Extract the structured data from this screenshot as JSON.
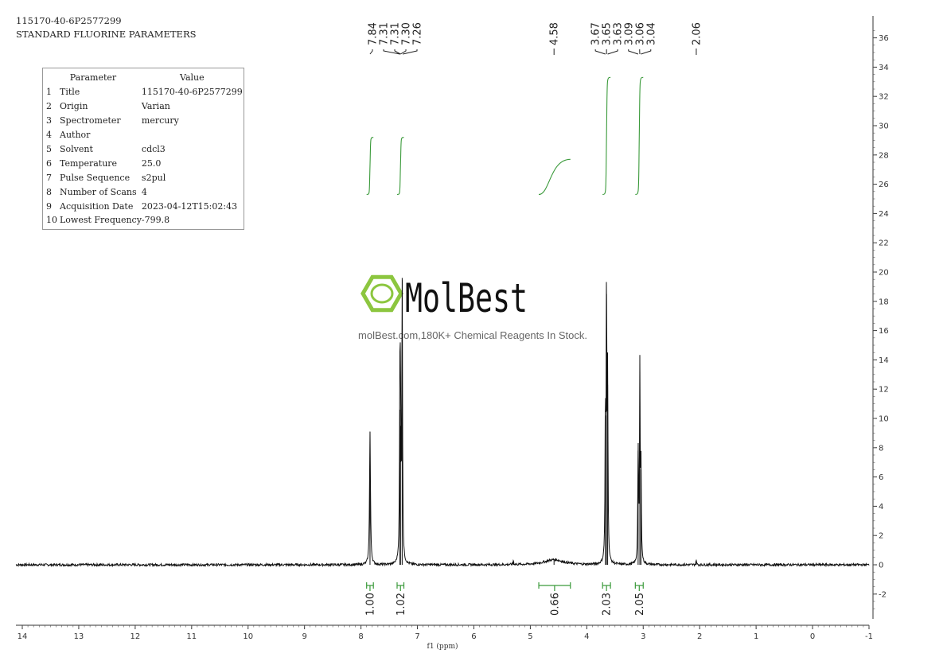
{
  "header": {
    "sample_id": "115170-40-6P2577299",
    "parameter_set": "STANDARD FLUORINE PARAMETERS"
  },
  "param_table": {
    "col_parameter": "Parameter",
    "col_value": "Value",
    "rows": [
      {
        "idx": "1",
        "name": "Title",
        "value": "115170-40-6P2577299"
      },
      {
        "idx": "2",
        "name": "Origin",
        "value": "Varian"
      },
      {
        "idx": "3",
        "name": "Spectrometer",
        "value": "mercury"
      },
      {
        "idx": "4",
        "name": "Author",
        "value": ""
      },
      {
        "idx": "5",
        "name": "Solvent",
        "value": "cdcl3"
      },
      {
        "idx": "6",
        "name": "Temperature",
        "value": "25.0"
      },
      {
        "idx": "7",
        "name": "Pulse Sequence",
        "value": "s2pul"
      },
      {
        "idx": "8",
        "name": "Number of Scans",
        "value": "4"
      },
      {
        "idx": "9",
        "name": "Acquisition Date",
        "value": "2023-04-12T15:02:43"
      },
      {
        "idx": "10",
        "name": "Lowest Frequency",
        "value": "-799.8"
      }
    ]
  },
  "watermark": {
    "brand": "MolBest",
    "tagline": "molBest.com,180K+ Chemical Reagents In Stock."
  },
  "colors": {
    "spectrum": "#111111",
    "integral": "#3a9a3a",
    "logo": "#8cc63f"
  },
  "chart_data": {
    "type": "line",
    "xlabel": "f1 (ppm)",
    "xlim": [
      14,
      -1
    ],
    "x_ticks": [
      "14",
      "13",
      "12",
      "11",
      "10",
      "9",
      "8",
      "7",
      "6",
      "5",
      "4",
      "3",
      "2",
      "1",
      "0",
      "-1"
    ],
    "ylim": [
      -3.5,
      37
    ],
    "y_ticks": [
      "36",
      "34",
      "32",
      "30",
      "28",
      "26",
      "24",
      "22",
      "20",
      "18",
      "16",
      "14",
      "12",
      "10",
      "8",
      "6",
      "4",
      "2",
      "0",
      "-2"
    ],
    "peaks": [
      {
        "ppm": 7.84,
        "height": 9.1,
        "width": 0.01
      },
      {
        "ppm": 7.31,
        "height": 10.6,
        "width": 0.008
      },
      {
        "ppm": 7.3,
        "height": 9.5,
        "width": 0.008
      },
      {
        "ppm": 7.27,
        "height": 19.6,
        "width": 0.007
      },
      {
        "ppm": 5.3,
        "height": 0.3,
        "width": 0.006
      },
      {
        "ppm": 4.58,
        "height": 0.35,
        "width": 0.2
      },
      {
        "ppm": 3.67,
        "height": 10.2,
        "width": 0.007
      },
      {
        "ppm": 3.65,
        "height": 18.5,
        "width": 0.007
      },
      {
        "ppm": 3.63,
        "height": 12.3,
        "width": 0.007
      },
      {
        "ppm": 3.09,
        "height": 7.8,
        "width": 0.007
      },
      {
        "ppm": 3.06,
        "height": 13.2,
        "width": 0.007
      },
      {
        "ppm": 3.04,
        "height": 6.5,
        "width": 0.007
      },
      {
        "ppm": 2.06,
        "height": 0.35,
        "width": 0.006
      }
    ],
    "peak_labels": [
      {
        "group": "aromatic",
        "labels": [
          {
            "text": "7.84",
            "ppm": 7.84
          },
          {
            "text": "7.31",
            "ppm": 7.31
          },
          {
            "text": "7.31",
            "ppm": 7.3
          },
          {
            "text": "7.30",
            "ppm": 7.3
          },
          {
            "text": "7.26",
            "ppm": 7.26
          }
        ]
      },
      {
        "group": "nh",
        "labels": [
          {
            "text": "4.58",
            "ppm": 4.58
          }
        ]
      },
      {
        "group": "ch2a",
        "labels": [
          {
            "text": "3.67",
            "ppm": 3.67
          },
          {
            "text": "3.65",
            "ppm": 3.65
          },
          {
            "text": "3.63",
            "ppm": 3.63
          }
        ]
      },
      {
        "group": "ch2b",
        "labels": [
          {
            "text": "3.09",
            "ppm": 3.09
          },
          {
            "text": "3.06",
            "ppm": 3.06
          },
          {
            "text": "3.04",
            "ppm": 3.04
          }
        ]
      },
      {
        "group": "acetone",
        "labels": [
          {
            "text": "2.06",
            "ppm": 2.06
          }
        ]
      }
    ],
    "integrals": [
      {
        "label": "1.00",
        "from": 7.9,
        "to": 7.78,
        "low": 25.3,
        "high": 29.2
      },
      {
        "label": "1.02",
        "from": 7.36,
        "to": 7.24,
        "low": 25.3,
        "high": 29.2
      },
      {
        "label": "0.66",
        "from": 4.85,
        "to": 4.29,
        "low": 25.3,
        "high": 27.7
      },
      {
        "label": "2.03",
        "from": 3.72,
        "to": 3.58,
        "low": 25.3,
        "high": 33.3
      },
      {
        "label": "2.05",
        "from": 3.14,
        "to": 3.0,
        "low": 25.3,
        "high": 33.3
      }
    ]
  }
}
